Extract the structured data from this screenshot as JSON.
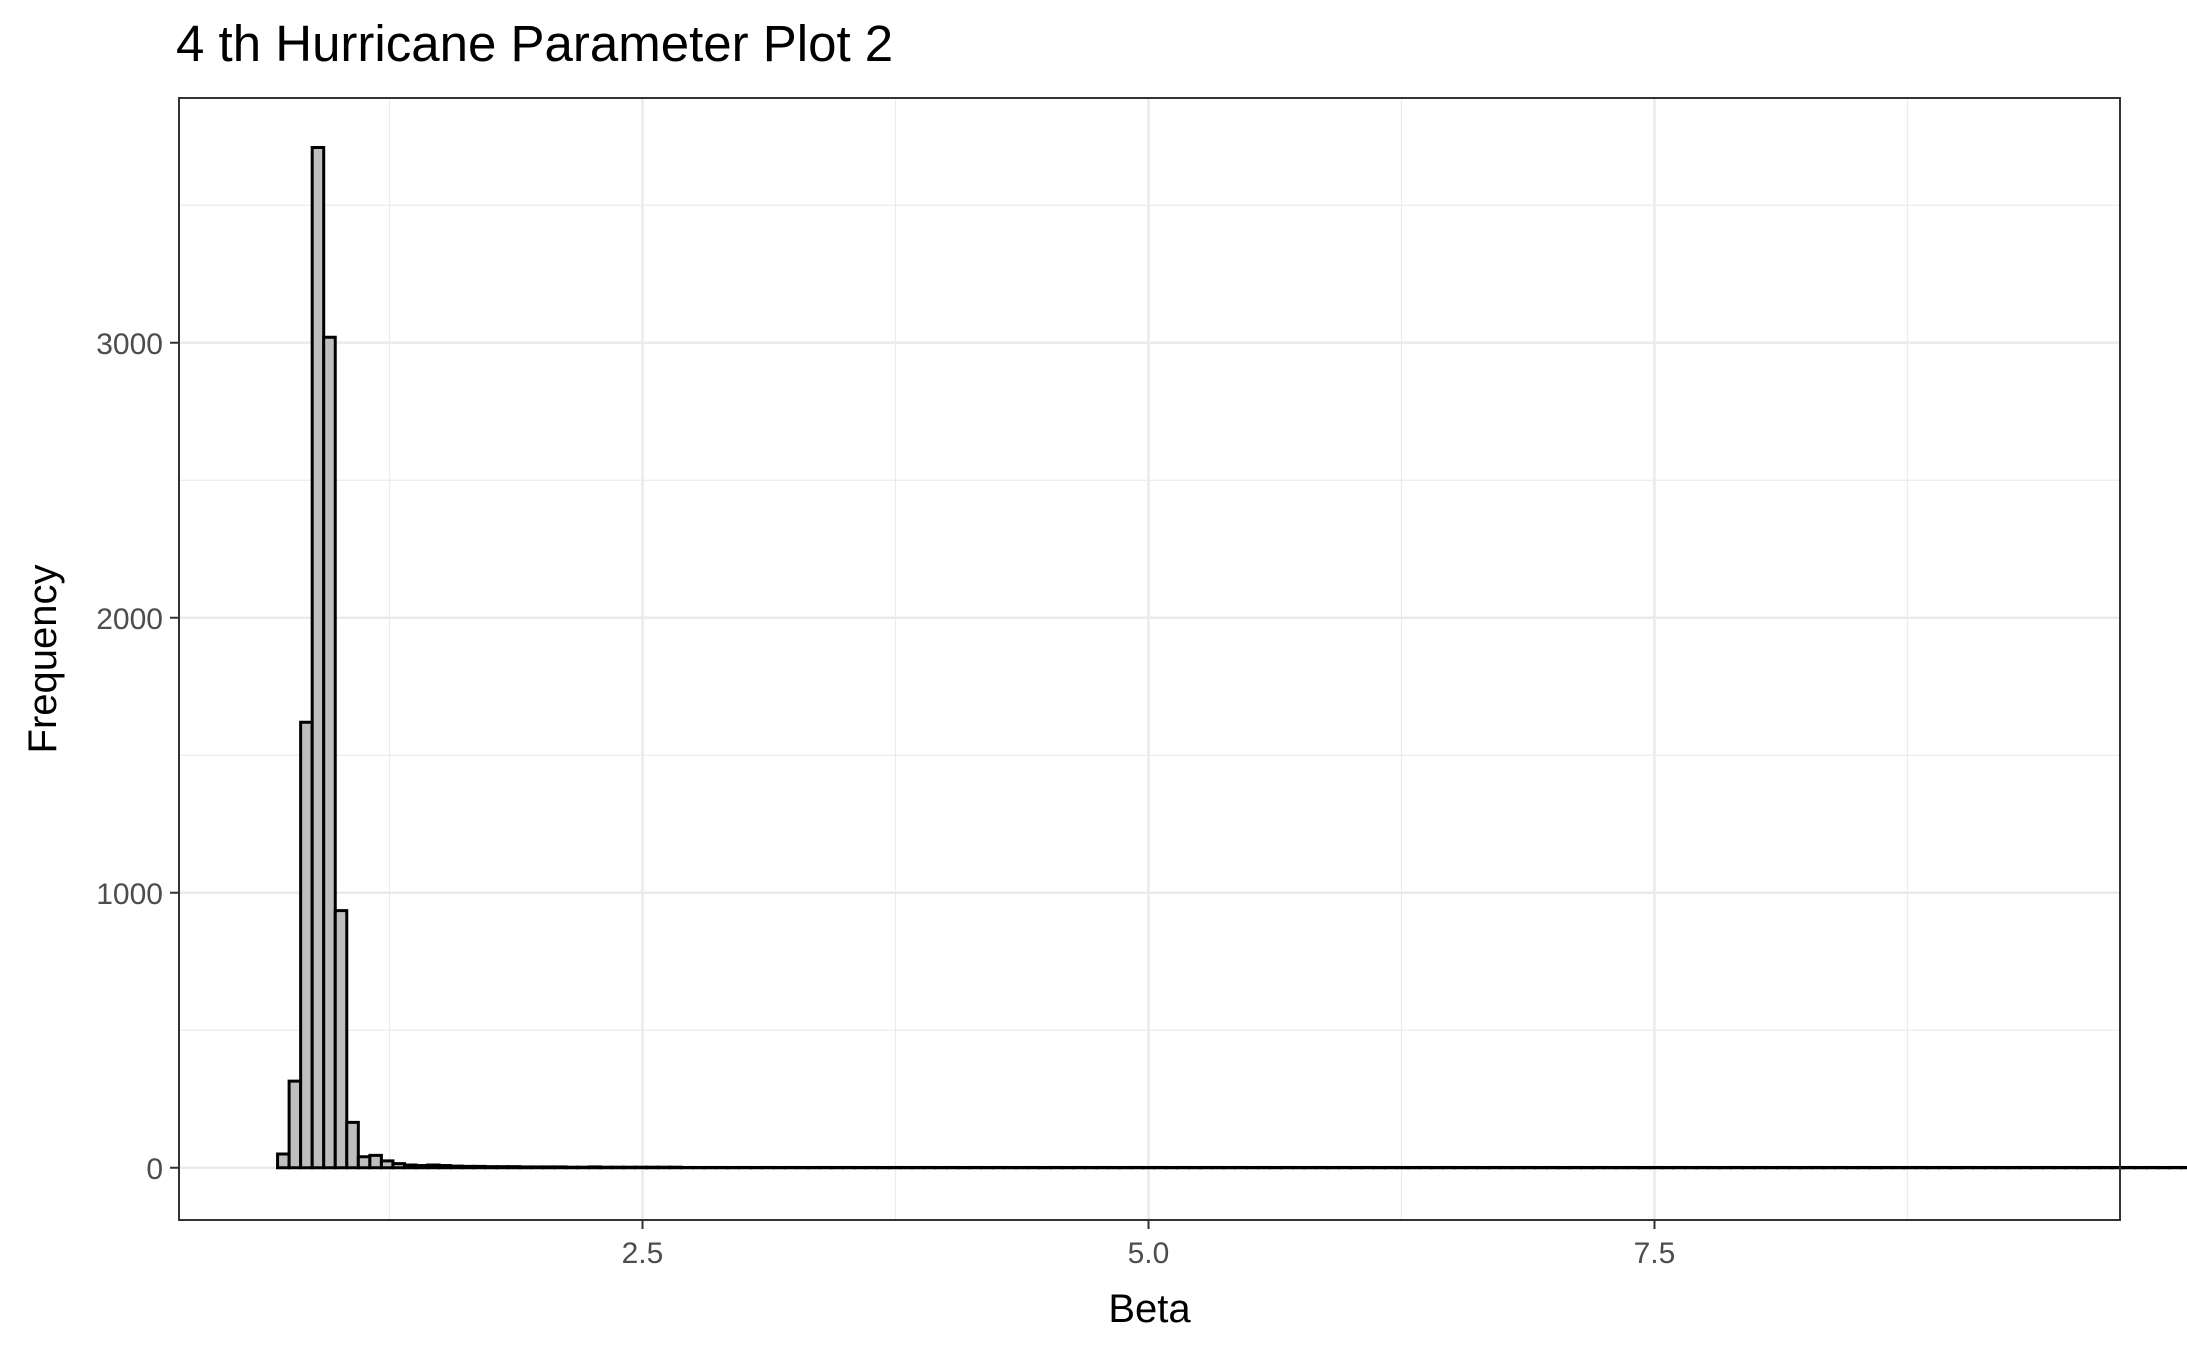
{
  "chart_data": {
    "type": "bar",
    "title": "4 th Hurricane Parameter Plot 2",
    "xlabel": "Beta",
    "ylabel": "Frequency",
    "xlim": [
      0.21,
      9.8
    ],
    "ylim": [
      -190,
      3890
    ],
    "x_ticks": [
      {
        "value": 2.5,
        "label": "2.5"
      },
      {
        "value": 5.0,
        "label": "5.0"
      },
      {
        "value": 7.5,
        "label": "7.5"
      }
    ],
    "y_ticks": [
      {
        "value": 0,
        "label": "0"
      },
      {
        "value": 1000,
        "label": "1000"
      },
      {
        "value": 2000,
        "label": "2000"
      },
      {
        "value": 3000,
        "label": "3000"
      }
    ],
    "grid": true,
    "bin_start": 0.64,
    "bin_width": 0.057,
    "values": [
      0,
      50,
      315,
      1620,
      3710,
      3020,
      935,
      165,
      40,
      45,
      25,
      15,
      10,
      8,
      10,
      8,
      6,
      5,
      5,
      4,
      4,
      4,
      3,
      3,
      3,
      3,
      2,
      2,
      3,
      2,
      2,
      2,
      2,
      2,
      2,
      2,
      1,
      1,
      1,
      1,
      1,
      1,
      1,
      1,
      1,
      1,
      1,
      1,
      1,
      1,
      1,
      1,
      1,
      1,
      1,
      1,
      1,
      1,
      1,
      1,
      1,
      1,
      1,
      1,
      1,
      1,
      1,
      1,
      1,
      1,
      1,
      1,
      1,
      1,
      1,
      1,
      1,
      1,
      1,
      1,
      1,
      1,
      1,
      1,
      1,
      1,
      1,
      1,
      1,
      1,
      1,
      1,
      1,
      1,
      1,
      1,
      1,
      1,
      1,
      1,
      1,
      1,
      1,
      1,
      1,
      1,
      1,
      1,
      1,
      1,
      1,
      1,
      1,
      1,
      1,
      1,
      1,
      1,
      1,
      1,
      1,
      1,
      1,
      1,
      1,
      1,
      1,
      1,
      1,
      1,
      1,
      1,
      1,
      1,
      1,
      1,
      1,
      1,
      1,
      1,
      1,
      1,
      1,
      1,
      1,
      1,
      1,
      1,
      1,
      1,
      1,
      1,
      1,
      1,
      1,
      1,
      1,
      1,
      1,
      1,
      1,
      1,
      1,
      1,
      1,
      1,
      1,
      1,
      1,
      1,
      1,
      1,
      1,
      1,
      1,
      1,
      1,
      1,
      1,
      1,
      1,
      1,
      1,
      1,
      1,
      1,
      1,
      1,
      1,
      1,
      1,
      1,
      1,
      1,
      1,
      1,
      1,
      1,
      1,
      1,
      1,
      1,
      1,
      1,
      1,
      1,
      1,
      1,
      1,
      1,
      1,
      1,
      1,
      1,
      1,
      1,
      1,
      1,
      1,
      1,
      1,
      1,
      1,
      1,
      1,
      1,
      1,
      1,
      1,
      1,
      1,
      1,
      1,
      1,
      1,
      1,
      1,
      1,
      1,
      1,
      1,
      1,
      1,
      1,
      1
    ],
    "bar_fill": "#bebebe",
    "bar_outline": "#000000",
    "panel_background": "#ffffff",
    "grid_color": "#ebebeb"
  }
}
